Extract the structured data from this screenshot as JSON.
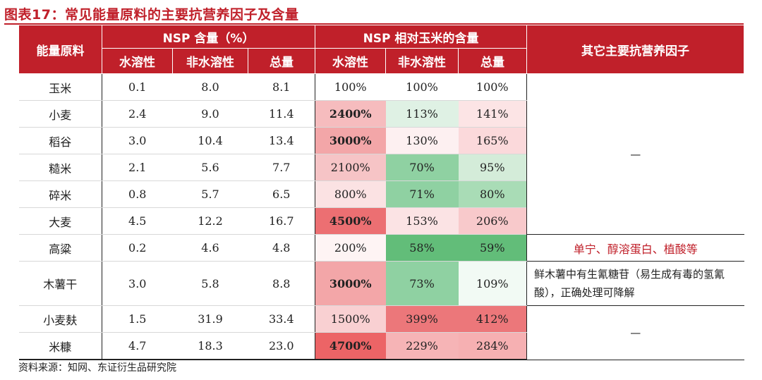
{
  "title": "图表17：常见能量原料的主要抗营养因子及含量",
  "headers": {
    "ingredient": "能量原料",
    "nsp_group": "NSP 含量（%）",
    "rel_group": "NSP 相对玉米的含量",
    "other": "其它主要抗营养因子",
    "sub": [
      "水溶性",
      "非水溶性",
      "总量",
      "水溶性",
      "非水溶性",
      "总量"
    ]
  },
  "rows": [
    {
      "name": "玉米",
      "v": [
        "0.1",
        "8.0",
        "8.1"
      ],
      "r": [
        "100%",
        "100%",
        "100%"
      ]
    },
    {
      "name": "小麦",
      "v": [
        "2.4",
        "9.0",
        "11.4"
      ],
      "r": [
        "2400%",
        "113%",
        "141%"
      ]
    },
    {
      "name": "稻谷",
      "v": [
        "3.0",
        "10.4",
        "13.4"
      ],
      "r": [
        "3000%",
        "130%",
        "165%"
      ]
    },
    {
      "name": "糙米",
      "v": [
        "2.1",
        "5.6",
        "7.7"
      ],
      "r": [
        "2100%",
        "70%",
        "95%"
      ]
    },
    {
      "name": "碎米",
      "v": [
        "0.8",
        "5.7",
        "6.5"
      ],
      "r": [
        "800%",
        "71%",
        "80%"
      ]
    },
    {
      "name": "大麦",
      "v": [
        "4.5",
        "12.2",
        "16.7"
      ],
      "r": [
        "4500%",
        "153%",
        "206%"
      ]
    },
    {
      "name": "高粱",
      "v": [
        "0.2",
        "4.6",
        "4.8"
      ],
      "r": [
        "200%",
        "58%",
        "59%"
      ]
    },
    {
      "name": "木薯干",
      "v": [
        "3.0",
        "5.8",
        "8.8"
      ],
      "r": [
        "3000%",
        "73%",
        "109%"
      ]
    },
    {
      "name": "小麦麸",
      "v": [
        "1.5",
        "31.9",
        "33.4"
      ],
      "r": [
        "1500%",
        "399%",
        "412%"
      ]
    },
    {
      "name": "米糠",
      "v": [
        "4.7",
        "18.3",
        "23.0"
      ],
      "r": [
        "4700%",
        "229%",
        "284%"
      ]
    }
  ],
  "other_factors": {
    "dash_top": "—",
    "sorghum": "单宁、醇溶蛋白、植酸等",
    "cassava": "鲜木薯中有生氰糖苷（易生成有毒的氢氰酸），正确处理可降解",
    "dash_bottom": "—"
  },
  "cell_colors": [
    [
      "#ffffff",
      "#ffffff",
      "#ffffff"
    ],
    [
      "#f6bcbe",
      "#dff1e4",
      "#fce4e5"
    ],
    [
      "#f3a6a8",
      "#fdf0f1",
      "#fbd9db"
    ],
    [
      "#f6c4c6",
      "#8fd1a2",
      "#d4ecd9"
    ],
    [
      "#fbe2e3",
      "#8fd1a2",
      "#a9dcb6"
    ],
    [
      "#ec6f72",
      "#fbe3e4",
      "#f8c9cb"
    ],
    [
      "#fef4f4",
      "#62bd79",
      "#62bd79"
    ],
    [
      "#f3a6a8",
      "#8fd1a2",
      "#f2faf4"
    ],
    [
      "#f9d0d2",
      "#ec777a",
      "#ec777a"
    ],
    [
      "#ec6466",
      "#f6b4b6",
      "#f6b0b2"
    ]
  ],
  "bold_cells": [
    1,
    2,
    5,
    7,
    9
  ],
  "source": "资料来源：知网、东证衍生品研究院"
}
